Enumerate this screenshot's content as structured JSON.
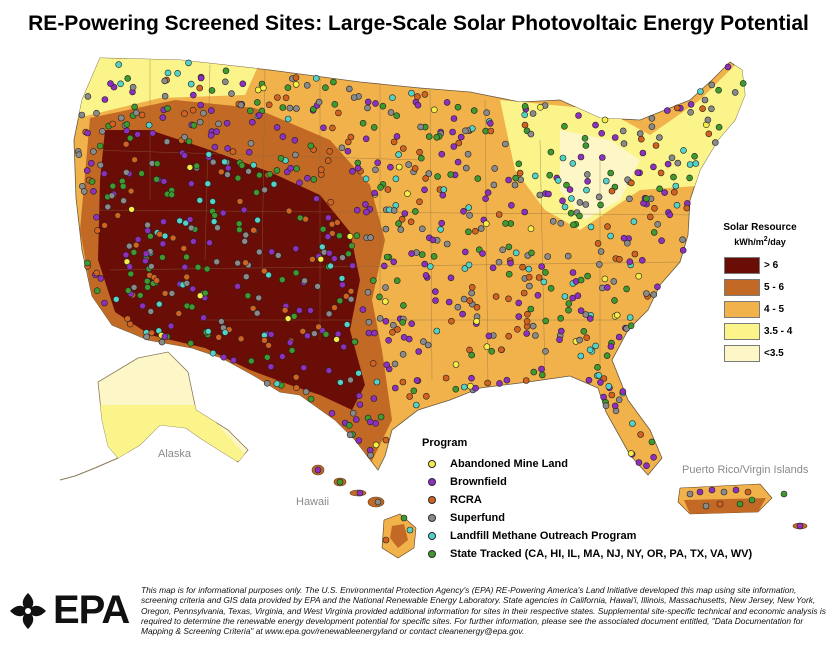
{
  "title": "RE-Powering Screened Sites: Large-Scale Solar Photovoltaic Energy Potential",
  "solar_resource_legend": {
    "title": "Solar Resource",
    "unit_prefix": "kWh/m",
    "unit_sup": "2",
    "unit_suffix": "/day",
    "classes": [
      {
        "label": "> 6",
        "color": "#6b0d07"
      },
      {
        "label": "5 - 6",
        "color": "#c26a25"
      },
      {
        "label": "4 - 5",
        "color": "#f1b24c"
      },
      {
        "label": "3.5 - 4",
        "color": "#fbf48a"
      },
      {
        "label": "<3.5",
        "color": "#fdf6c6"
      }
    ]
  },
  "program_legend": {
    "title": "Program",
    "items": [
      {
        "label": "Abandoned Mine Land",
        "color": "#f5ec45"
      },
      {
        "label": "Brownfield",
        "color": "#8e2fc0"
      },
      {
        "label": "RCRA",
        "color": "#d4621f"
      },
      {
        "label": "Superfund",
        "color": "#8a8a8a"
      },
      {
        "label": "Landfill Methane Outreach Program",
        "color": "#52d3c8"
      },
      {
        "label": "State Tracked (CA, HI, IL, MA, NJ, NY, OR, PA, TX, VA, WV)",
        "color": "#3e9a2e"
      }
    ]
  },
  "region_labels": {
    "alaska": "Alaska",
    "hawaii": "Hawaii",
    "pr_vi": "Puerto Rico/Virgin Islands"
  },
  "disclaimer": "This map is for informational purposes only.  The U.S. Environmental Protection Agency's (EPA) RE-Powering America's Land Initiative developed this map using site information, screening criteria and GIS data provided by EPA and the National Renewable Energy Laboratory.  State agencies in California, Hawai'i, Illinois, Massachusetts, New Jersey, New York, Oregon, Pennsylvania, Texas, Virginia, and West Virginia provided additional information for sites in their respective states. Supplemental site-specific technical and economic analysis is required to determine the renewable energy development potential for specific sites.  For further information, please see the associated document entitled, \"Data Documentation for Mapping & Screening Criteria\" at www.epa.gov/renewableenergyland or contact cleanenergy@epa.gov.",
  "logo_text": "EPA"
}
